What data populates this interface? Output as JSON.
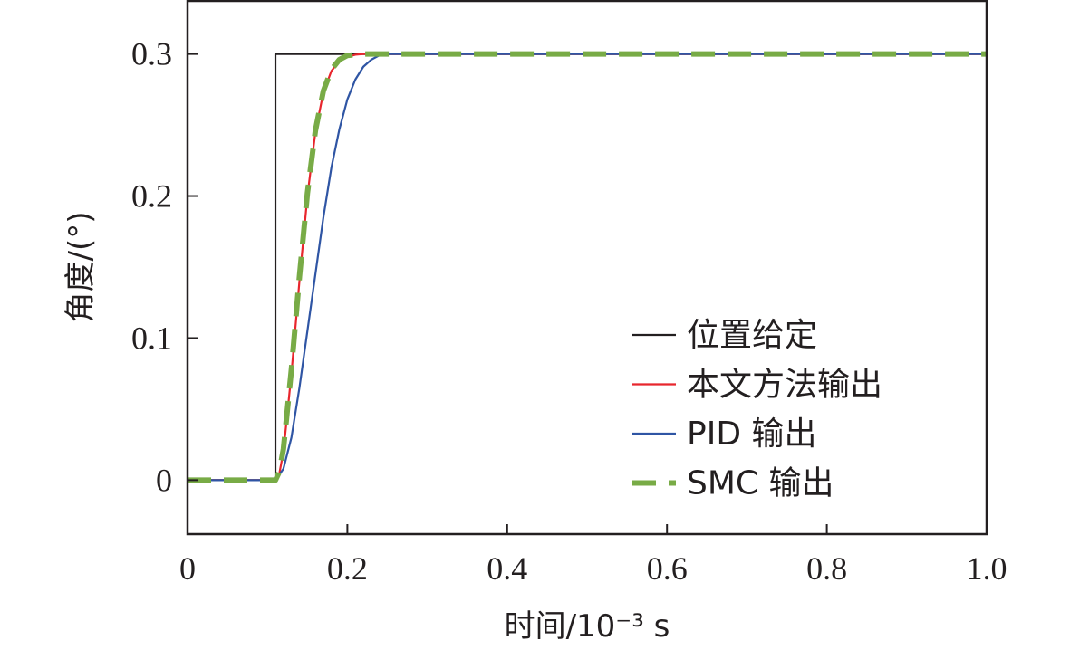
{
  "chart_data": {
    "type": "line",
    "xlabel": "时间/10⁻³ s",
    "ylabel": "角度/(°)",
    "xlim": [
      0,
      1.0
    ],
    "ylim": [
      -0.038,
      0.338
    ],
    "x_ticks": [
      0,
      0.2,
      0.4,
      0.6,
      0.8,
      1.0
    ],
    "x_tick_labels": [
      "0",
      "0.2",
      "0.4",
      "0.6",
      "0.8",
      "1.0"
    ],
    "y_ticks": [
      0,
      0.1,
      0.2,
      0.3
    ],
    "y_tick_labels": [
      "0",
      "0.1",
      "0.2",
      "0.3"
    ],
    "grid": false,
    "legend_position": "bottom-right",
    "series": [
      {
        "name": "位置给定",
        "color": "#231f20",
        "style": "solid",
        "points": [
          [
            0,
            0
          ],
          [
            0.11,
            0
          ],
          [
            0.11,
            0.3
          ],
          [
            1.0,
            0.3
          ]
        ]
      },
      {
        "name": "本文方法输出",
        "color": "#e8262d",
        "style": "solid",
        "points": [
          [
            0,
            0
          ],
          [
            0.11,
            0
          ],
          [
            0.115,
            0.005
          ],
          [
            0.12,
            0.02
          ],
          [
            0.13,
            0.075
          ],
          [
            0.14,
            0.14
          ],
          [
            0.15,
            0.2
          ],
          [
            0.16,
            0.245
          ],
          [
            0.17,
            0.273
          ],
          [
            0.18,
            0.288
          ],
          [
            0.19,
            0.295
          ],
          [
            0.2,
            0.298
          ],
          [
            0.21,
            0.2995
          ],
          [
            0.22,
            0.3
          ],
          [
            1.0,
            0.3
          ]
        ]
      },
      {
        "name": "PID 输出",
        "color": "#2f55a4",
        "style": "solid",
        "points": [
          [
            0,
            0
          ],
          [
            0.11,
            0
          ],
          [
            0.12,
            0.008
          ],
          [
            0.13,
            0.03
          ],
          [
            0.14,
            0.065
          ],
          [
            0.15,
            0.105
          ],
          [
            0.16,
            0.145
          ],
          [
            0.17,
            0.185
          ],
          [
            0.18,
            0.22
          ],
          [
            0.19,
            0.247
          ],
          [
            0.2,
            0.268
          ],
          [
            0.21,
            0.282
          ],
          [
            0.22,
            0.291
          ],
          [
            0.23,
            0.296
          ],
          [
            0.24,
            0.299
          ],
          [
            0.25,
            0.3
          ],
          [
            1.0,
            0.3
          ]
        ]
      },
      {
        "name": "SMC 输出",
        "color": "#78ab46",
        "style": "dashed",
        "points": [
          [
            0,
            0
          ],
          [
            0.11,
            0
          ],
          [
            0.115,
            0.006
          ],
          [
            0.12,
            0.022
          ],
          [
            0.13,
            0.078
          ],
          [
            0.14,
            0.143
          ],
          [
            0.15,
            0.202
          ],
          [
            0.16,
            0.246
          ],
          [
            0.17,
            0.274
          ],
          [
            0.18,
            0.289
          ],
          [
            0.19,
            0.296
          ],
          [
            0.2,
            0.299
          ],
          [
            0.22,
            0.3
          ],
          [
            1.0,
            0.3
          ]
        ]
      }
    ]
  }
}
